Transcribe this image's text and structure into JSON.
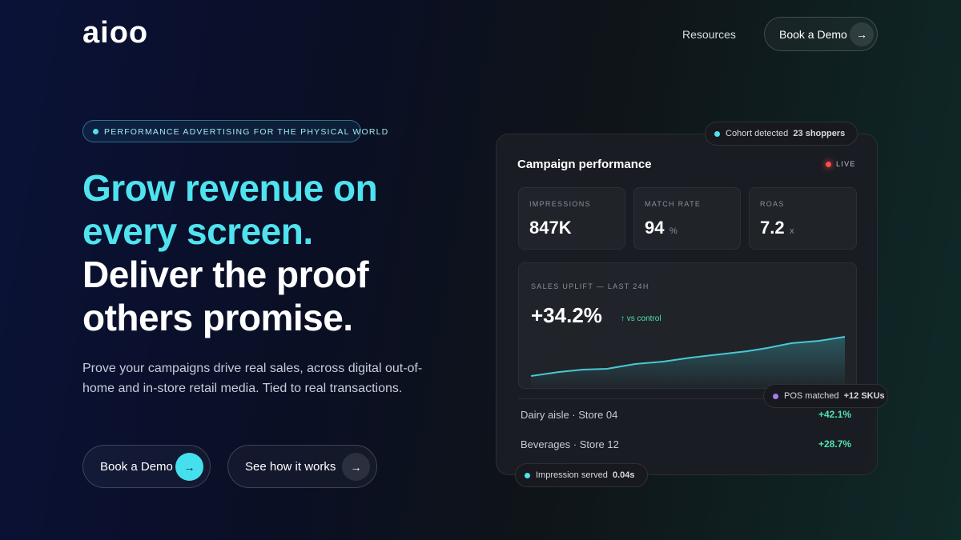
{
  "nav": {
    "logo": "aioo",
    "links": [
      "Resources"
    ],
    "cta": "Book a Demo"
  },
  "hero": {
    "badge": "PERFORMANCE ADVERTISING FOR THE PHYSICAL WORLD",
    "headline_highlight": [
      "Grow revenue on",
      "every screen."
    ],
    "headline": [
      "Deliver the proof",
      "others promise."
    ],
    "description": [
      "Prove your campaigns drive real sales, across digital out-of-",
      "home and in-store retail media. Tied to real transactions."
    ],
    "buttons": [
      "Book a Demo",
      "See how it works"
    ]
  },
  "dashboard": {
    "title": "Campaign performance",
    "status": "LIVE",
    "metrics": [
      {
        "label": "IMPRESSIONS",
        "value": "847K"
      },
      {
        "label": "MATCH RATE",
        "value": "94",
        "unit": "%"
      },
      {
        "label": "ROAS",
        "value": "7.2",
        "unit": "x"
      }
    ],
    "uplift": {
      "label": "SALES UPLIFT — LAST 24H",
      "value": "+34.2%",
      "note": "↑ vs control"
    },
    "rows": [
      {
        "name": "Dairy aisle · Store 04",
        "value": "+42.1%"
      },
      {
        "name": "Beverages · Store 12",
        "value": "+28.7%"
      }
    ]
  },
  "toasts": [
    {
      "label": "Cohort detected",
      "detail": "23 shoppers"
    },
    {
      "label": "POS matched",
      "detail": "+12 SKUs"
    },
    {
      "label": "Impression served",
      "detail": "0.04s"
    }
  ]
}
